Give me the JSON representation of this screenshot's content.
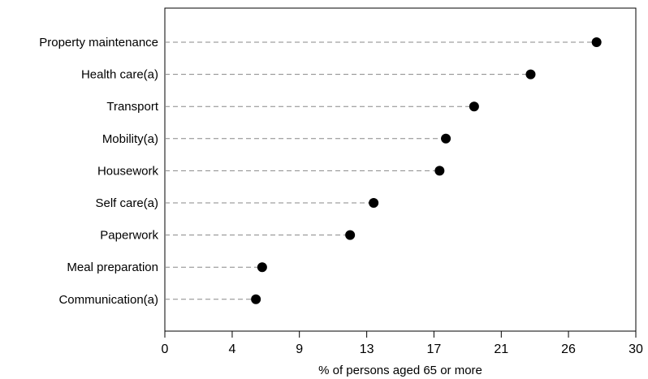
{
  "chart_data": {
    "type": "scatter",
    "subtype": "dot-plot",
    "title": "",
    "xlabel": "% of persons aged 65 or more",
    "ylabel": "",
    "xlim": [
      0,
      30
    ],
    "x_ticks": [
      "0",
      "4",
      "9",
      "13",
      "17",
      "21",
      "26",
      "30"
    ],
    "x_tick_values": [
      0,
      4.29,
      8.57,
      12.86,
      17.14,
      21.43,
      25.71,
      30
    ],
    "grid": false,
    "leader_lines": true,
    "categories": [
      "Property maintenance",
      "Health care(a)",
      "Transport",
      "Mobility(a)",
      "Housework",
      "Self care(a)",
      "Paperwork",
      "Meal preparation",
      "Communication(a)"
    ],
    "values": [
      27.5,
      23.3,
      19.7,
      17.9,
      17.5,
      13.3,
      11.8,
      6.2,
      5.8
    ],
    "marker_color": "#000000",
    "leader_color": "#888888"
  }
}
